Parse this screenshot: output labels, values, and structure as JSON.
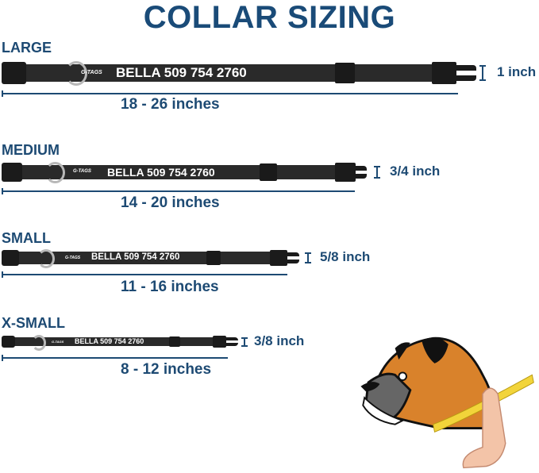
{
  "title": "COLLAR SIZING",
  "sizes": [
    {
      "label": "LARGE",
      "brand": "G-TAGS",
      "name": "BELLA 509 754 2760",
      "width": "1 inch",
      "range": "18 - 26 inches"
    },
    {
      "label": "MEDIUM",
      "brand": "G-TAGS",
      "name": "BELLA 509 754 2760",
      "width": "3/4 inch",
      "range": "14 - 20 inches"
    },
    {
      "label": "SMALL",
      "brand": "G-TAGS",
      "name": "BELLA 509 754 2760",
      "width": "5/8 inch",
      "range": "11 - 16 inches"
    },
    {
      "label": "X-SMALL",
      "brand": "G-TAGS",
      "name": "BELLA 509 754 2760",
      "width": "3/8 inch",
      "range": "8 - 12 inches"
    }
  ],
  "colors": {
    "text": "#1d4a73",
    "collar": "#2a2a2a",
    "dog_fur": "#d9822b",
    "tape": "#f2d43a"
  },
  "illustration": "boxer-dog-neck-measuring-icon"
}
